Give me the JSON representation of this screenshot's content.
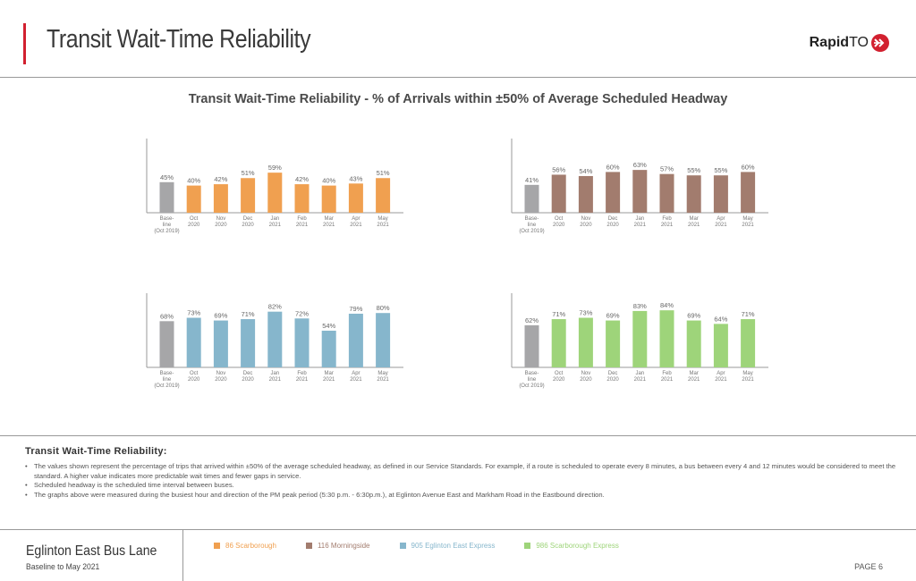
{
  "header": {
    "title": "Transit Wait-Time Reliability",
    "logo_bold": "Rapid",
    "logo_light": "TO",
    "accent_color": "#d2202f"
  },
  "main_title": "Transit Wait-Time Reliability - % of Arrivals within ±50% of Average Scheduled Headway",
  "chart_data": [
    {
      "type": "bar",
      "title": "86 Scarborough",
      "categories": [
        "Base-line (Oct 2019)",
        "Oct 2020",
        "Nov 2020",
        "Dec 2020",
        "Jan 2021",
        "Feb 2021",
        "Mar 2021",
        "Apr 2021",
        "May 2021"
      ],
      "category_lines": [
        [
          "Base-",
          "line",
          "(Oct 2019)"
        ],
        [
          "Oct",
          "2020"
        ],
        [
          "Nov",
          "2020"
        ],
        [
          "Dec",
          "2020"
        ],
        [
          "Jan",
          "2021"
        ],
        [
          "Feb",
          "2021"
        ],
        [
          "Mar",
          "2021"
        ],
        [
          "Apr",
          "2021"
        ],
        [
          "May",
          "2021"
        ]
      ],
      "values": [
        45,
        40,
        42,
        51,
        59,
        42,
        40,
        43,
        51
      ],
      "labels": [
        "45%",
        "40%",
        "42%",
        "51%",
        "59%",
        "42%",
        "40%",
        "43%",
        "51%"
      ],
      "color": "#f0a050",
      "baseline_color": "#a6a6a8",
      "ylim": [
        0,
        100
      ],
      "xlabel": "",
      "ylabel": "",
      "grid": false
    },
    {
      "type": "bar",
      "title": "116 Morningside",
      "categories": [
        "Base-line (Oct 2019)",
        "Oct 2020",
        "Nov 2020",
        "Dec 2020",
        "Jan 2021",
        "Feb 2021",
        "Mar 2021",
        "Apr 2021",
        "May 2021"
      ],
      "category_lines": [
        [
          "Base-",
          "line",
          "(Oct 2019)"
        ],
        [
          "Oct",
          "2020"
        ],
        [
          "Nov",
          "2020"
        ],
        [
          "Dec",
          "2020"
        ],
        [
          "Jan",
          "2021"
        ],
        [
          "Feb",
          "2021"
        ],
        [
          "Mar",
          "2021"
        ],
        [
          "Apr",
          "2021"
        ],
        [
          "May",
          "2021"
        ]
      ],
      "values": [
        41,
        56,
        54,
        60,
        63,
        57,
        55,
        55,
        60
      ],
      "labels": [
        "41%",
        "56%",
        "54%",
        "60%",
        "63%",
        "57%",
        "55%",
        "55%",
        "60%"
      ],
      "color": "#a27c6e",
      "baseline_color": "#a6a6a8",
      "ylim": [
        0,
        100
      ],
      "xlabel": "",
      "ylabel": "",
      "grid": false
    },
    {
      "type": "bar",
      "title": "905 Eglinton East Express",
      "categories": [
        "Base-line (Oct 2019)",
        "Oct 2020",
        "Nov 2020",
        "Dec 2020",
        "Jan 2021",
        "Feb 2021",
        "Mar 2021",
        "Apr 2021",
        "May 2021"
      ],
      "category_lines": [
        [
          "Base-",
          "line",
          "(Oct 2019)"
        ],
        [
          "Oct",
          "2020"
        ],
        [
          "Nov",
          "2020"
        ],
        [
          "Dec",
          "2020"
        ],
        [
          "Jan",
          "2021"
        ],
        [
          "Feb",
          "2021"
        ],
        [
          "Mar",
          "2021"
        ],
        [
          "Apr",
          "2021"
        ],
        [
          "May",
          "2021"
        ]
      ],
      "values": [
        68,
        73,
        69,
        71,
        82,
        72,
        54,
        79,
        80
      ],
      "labels": [
        "68%",
        "73%",
        "69%",
        "71%",
        "82%",
        "72%",
        "54%",
        "79%",
        "80%"
      ],
      "color": "#86b6cc",
      "baseline_color": "#a6a6a8",
      "ylim": [
        0,
        100
      ],
      "xlabel": "",
      "ylabel": "",
      "grid": false
    },
    {
      "type": "bar",
      "title": "986 Scarborough Express",
      "categories": [
        "Base-line (Oct 2019)",
        "Oct 2020",
        "Nov 2020",
        "Dec 2020",
        "Jan 2021",
        "Feb 2021",
        "Mar 2021",
        "Apr 2021",
        "May 2021"
      ],
      "category_lines": [
        [
          "Base-",
          "line",
          "(Oct 2019)"
        ],
        [
          "Oct",
          "2020"
        ],
        [
          "Nov",
          "2020"
        ],
        [
          "Dec",
          "2020"
        ],
        [
          "Jan",
          "2021"
        ],
        [
          "Feb",
          "2021"
        ],
        [
          "Mar",
          "2021"
        ],
        [
          "Apr",
          "2021"
        ],
        [
          "May",
          "2021"
        ]
      ],
      "values": [
        62,
        71,
        73,
        69,
        83,
        84,
        69,
        64,
        71
      ],
      "labels": [
        "62%",
        "71%",
        "73%",
        "69%",
        "83%",
        "84%",
        "69%",
        "64%",
        "71%"
      ],
      "color": "#9ed47a",
      "baseline_color": "#a6a6a8",
      "ylim": [
        0,
        100
      ],
      "xlabel": "",
      "ylabel": "",
      "grid": false
    }
  ],
  "notes": {
    "heading": "Transit Wait-Time Reliability:",
    "items": [
      "The values shown represent the percentage of trips that arrived within ±50% of the average scheduled headway, as defined in our Service Standards. For example, if a route is scheduled to operate every 8 minutes, a bus between every 4 and 12 minutes would be considered to meet the standard. A higher value indicates more predictable wait times and fewer gaps in service.",
      "Scheduled headway is the scheduled time interval between buses.",
      "The graphs above were measured during the busiest hour and direction of the PM peak period (5:30 p.m. - 6:30p.m.), at Eglinton Avenue East and Markham Road in the Eastbound direction."
    ]
  },
  "footer": {
    "title": "Eglinton East Bus Lane",
    "subtitle": "Baseline to May 2021",
    "page": "PAGE 6",
    "legend": [
      {
        "label": "86 Scarborough",
        "color": "#f0a050"
      },
      {
        "label": "116 Morningside",
        "color": "#a27c6e"
      },
      {
        "label": "905 Eglinton East Express",
        "color": "#86b6cc"
      },
      {
        "label": "986 Scarborough Express",
        "color": "#9ed47a"
      }
    ]
  }
}
